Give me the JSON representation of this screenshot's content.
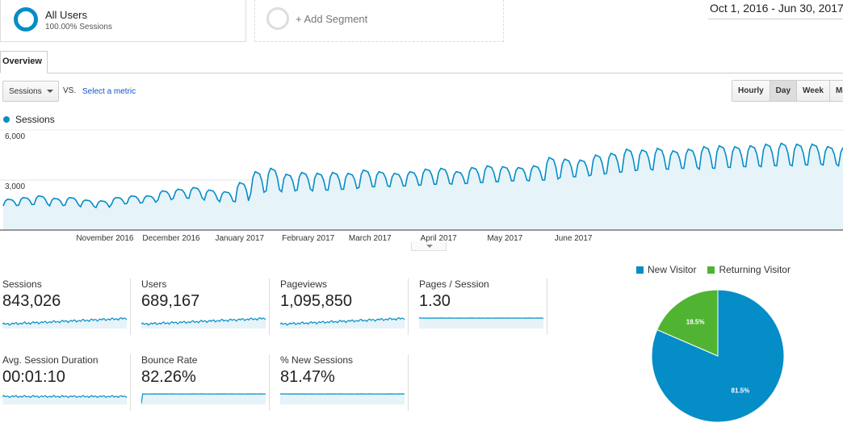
{
  "segments": {
    "all_users": {
      "title": "All Users",
      "subtitle": "100.00% Sessions"
    },
    "add_segment_label": "+ Add Segment"
  },
  "date_range": "Oct 1, 2016 - Jun 30, 2017",
  "tabs": [
    {
      "label": "Overview"
    }
  ],
  "controls": {
    "metric_select": "Sessions",
    "vs_label": "VS.",
    "select_metric": "Select a metric",
    "granularity": [
      "Hourly",
      "Day",
      "Week",
      "Mon"
    ],
    "active_granularity": "Day"
  },
  "colors": {
    "primary": "#058dc7",
    "fill": "#e6f3f9",
    "returning": "#50b432",
    "link": "#1155cc"
  },
  "chart_data": {
    "type": "area",
    "legend": "Sessions",
    "y_ticks": [
      "6,000",
      "3,000"
    ],
    "ylim": [
      0,
      6000
    ],
    "x_labels": [
      "November 2016",
      "December 2016",
      "January 2017",
      "February 2017",
      "March 2017",
      "April 2017",
      "May 2017",
      "June 2017"
    ],
    "weekly_peaks": [
      1850,
      1950,
      2050,
      1900,
      1950,
      1800,
      1750,
      1950,
      2050,
      2050,
      2350,
      2450,
      2550,
      2400,
      2300,
      2850,
      3500,
      3700,
      3350,
      3450,
      3400,
      3450,
      3400,
      3600,
      3500,
      3400,
      3500,
      3650,
      3700,
      3500,
      3750,
      3850,
      3800,
      3750,
      3850,
      4350,
      4250,
      4200,
      4500,
      4600,
      4850,
      4800,
      4900,
      4750,
      4850,
      5000,
      5050,
      5000,
      5050,
      5150,
      5200,
      5150,
      5150,
      5000,
      4950
    ],
    "weekly_troughs": [
      1450,
      1500,
      1550,
      1450,
      1500,
      1400,
      1350,
      1550,
      1600,
      1650,
      1800,
      1900,
      1900,
      1800,
      1700,
      1700,
      2200,
      2350,
      2300,
      2400,
      2350,
      2400,
      2450,
      2550,
      2600,
      2600,
      2650,
      2700,
      2750,
      2750,
      2800,
      2850,
      2900,
      2950,
      2950,
      3000,
      3150,
      3200,
      3300,
      3400,
      3500,
      3600,
      3600,
      3650,
      3700,
      3650,
      3700,
      3750,
      3800,
      3800,
      3850,
      3850,
      3900,
      3900,
      3850
    ]
  },
  "metrics": [
    {
      "name": "Sessions",
      "value": "843,026",
      "trend": "rising"
    },
    {
      "name": "Users",
      "value": "689,167",
      "trend": "rising"
    },
    {
      "name": "Pageviews",
      "value": "1,095,850",
      "trend": "rising"
    },
    {
      "name": "Pages / Session",
      "value": "1.30",
      "trend": "flat"
    },
    {
      "name": "Avg. Session Duration",
      "value": "00:01:10",
      "trend": "noisy"
    },
    {
      "name": "Bounce Rate",
      "value": "82.26%",
      "trend": "step"
    },
    {
      "name": "% New Sessions",
      "value": "81.47%",
      "trend": "flat"
    }
  ],
  "pie": {
    "legend": [
      "New Visitor",
      "Returning Visitor"
    ],
    "slices": [
      {
        "name": "New Visitor",
        "value": 81.5,
        "label": "81.5%",
        "color": "#058dc7"
      },
      {
        "name": "Returning Visitor",
        "value": 18.5,
        "label": "18.5%",
        "color": "#50b432"
      }
    ]
  }
}
